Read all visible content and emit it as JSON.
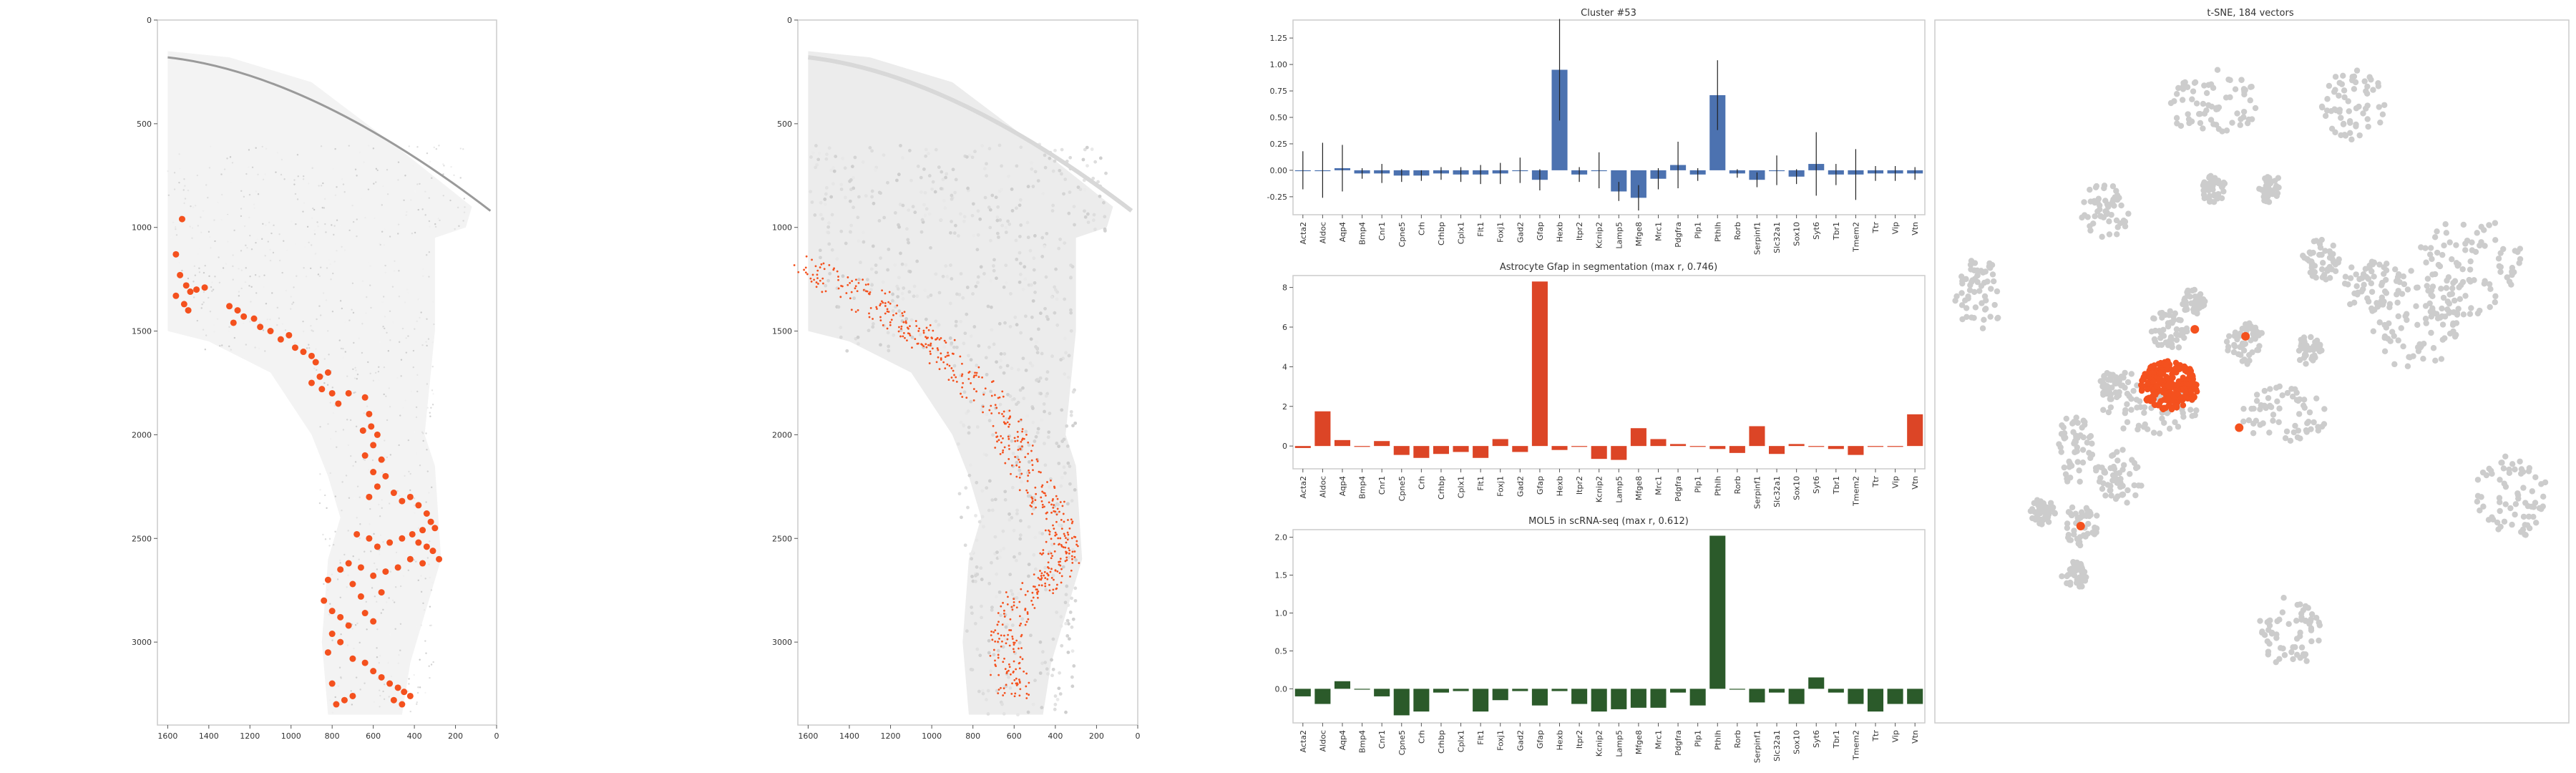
{
  "colors": {
    "highlight": "#f4511e",
    "dark_orange": "#e0401c",
    "light_gray": "#cccccc",
    "bar_blue": "#4c72b0",
    "bar_red": "#dc4526",
    "bar_green": "#2b5a2a",
    "frame": "#cccccc"
  },
  "chart_data": [
    {
      "type": "scatter",
      "panel": "tissue-raw",
      "title": "",
      "xlim": [
        1650,
        0
      ],
      "ylim": [
        3400,
        0
      ],
      "x_ticks": [
        1600,
        1400,
        1200,
        1000,
        800,
        600,
        400,
        200,
        0
      ],
      "y_ticks": [
        0,
        500,
        1000,
        1500,
        2000,
        2500,
        3000
      ],
      "highlight_points": [
        [
          1530,
          960
        ],
        [
          1560,
          1130
        ],
        [
          1540,
          1230
        ],
        [
          1510,
          1280
        ],
        [
          1490,
          1310
        ],
        [
          1460,
          1300
        ],
        [
          1420,
          1290
        ],
        [
          1560,
          1330
        ],
        [
          1520,
          1370
        ],
        [
          1500,
          1400
        ],
        [
          1300,
          1380
        ],
        [
          1260,
          1400
        ],
        [
          1230,
          1430
        ],
        [
          1280,
          1460
        ],
        [
          1180,
          1440
        ],
        [
          1150,
          1480
        ],
        [
          1100,
          1500
        ],
        [
          1050,
          1540
        ],
        [
          1010,
          1520
        ],
        [
          980,
          1580
        ],
        [
          940,
          1600
        ],
        [
          900,
          1620
        ],
        [
          880,
          1650
        ],
        [
          820,
          1700
        ],
        [
          860,
          1720
        ],
        [
          900,
          1750
        ],
        [
          850,
          1780
        ],
        [
          800,
          1800
        ],
        [
          770,
          1850
        ],
        [
          720,
          1800
        ],
        [
          640,
          1820
        ],
        [
          620,
          1900
        ],
        [
          610,
          1960
        ],
        [
          580,
          2000
        ],
        [
          650,
          1980
        ],
        [
          600,
          2050
        ],
        [
          640,
          2100
        ],
        [
          560,
          2120
        ],
        [
          600,
          2180
        ],
        [
          540,
          2200
        ],
        [
          580,
          2250
        ],
        [
          620,
          2300
        ],
        [
          500,
          2280
        ],
        [
          460,
          2320
        ],
        [
          420,
          2300
        ],
        [
          380,
          2340
        ],
        [
          340,
          2380
        ],
        [
          320,
          2420
        ],
        [
          300,
          2450
        ],
        [
          360,
          2460
        ],
        [
          410,
          2480
        ],
        [
          460,
          2500
        ],
        [
          520,
          2520
        ],
        [
          580,
          2540
        ],
        [
          620,
          2500
        ],
        [
          680,
          2480
        ],
        [
          380,
          2520
        ],
        [
          340,
          2540
        ],
        [
          310,
          2560
        ],
        [
          280,
          2600
        ],
        [
          360,
          2620
        ],
        [
          420,
          2600
        ],
        [
          480,
          2640
        ],
        [
          540,
          2660
        ],
        [
          600,
          2680
        ],
        [
          660,
          2640
        ],
        [
          720,
          2620
        ],
        [
          760,
          2650
        ],
        [
          820,
          2700
        ],
        [
          840,
          2800
        ],
        [
          800,
          2850
        ],
        [
          760,
          2880
        ],
        [
          720,
          2920
        ],
        [
          800,
          2960
        ],
        [
          760,
          3000
        ],
        [
          820,
          3050
        ],
        [
          700,
          3080
        ],
        [
          640,
          3100
        ],
        [
          600,
          3140
        ],
        [
          560,
          3170
        ],
        [
          520,
          3200
        ],
        [
          480,
          3220
        ],
        [
          450,
          3240
        ],
        [
          420,
          3260
        ],
        [
          800,
          3200
        ],
        [
          780,
          3300
        ],
        [
          740,
          3280
        ],
        [
          700,
          3260
        ],
        [
          500,
          3280
        ],
        [
          460,
          3300
        ],
        [
          640,
          2860
        ],
        [
          600,
          2900
        ],
        [
          660,
          2780
        ],
        [
          700,
          2720
        ],
        [
          560,
          2760
        ]
      ]
    },
    {
      "type": "scatter",
      "panel": "tissue-segmentation",
      "title": "",
      "xlim": [
        1650,
        0
      ],
      "ylim": [
        3400,
        0
      ],
      "x_ticks": [
        1600,
        1400,
        1200,
        1000,
        800,
        600,
        400,
        200,
        0
      ],
      "y_ticks": [
        0,
        500,
        1000,
        1500,
        2000,
        2500,
        3000
      ]
    },
    {
      "type": "bar",
      "panel": "cluster-bars",
      "title": "Cluster #53",
      "categories": [
        "Acta2",
        "Aldoc",
        "Aqp4",
        "Bmp4",
        "Cnr1",
        "Cpne5",
        "Crh",
        "Crhbp",
        "Cplx1",
        "Flt1",
        "Foxj1",
        "Gad2",
        "Gfap",
        "Hexb",
        "Itpr2",
        "Kcnip2",
        "Lamp5",
        "Mfge8",
        "Mrc1",
        "Pdgfra",
        "Plp1",
        "Pthlh",
        "Rorb",
        "Serpinf1",
        "Slc32a1",
        "Sox10",
        "Syt6",
        "Tbr1",
        "Tmem2",
        "Ttr",
        "Vip",
        "Vtn"
      ],
      "values": [
        0.0,
        0.0,
        0.02,
        -0.03,
        -0.03,
        -0.05,
        -0.05,
        -0.03,
        -0.04,
        -0.04,
        -0.03,
        0.0,
        -0.09,
        0.95,
        -0.04,
        0.0,
        -0.2,
        -0.26,
        -0.08,
        0.05,
        -0.04,
        0.71,
        -0.03,
        -0.09,
        0.0,
        -0.06,
        0.06,
        -0.04,
        -0.04,
        -0.03,
        -0.03,
        -0.03
      ],
      "errors": [
        0.18,
        0.26,
        0.22,
        0.05,
        0.09,
        0.06,
        0.05,
        0.06,
        0.07,
        0.09,
        0.1,
        0.12,
        0.1,
        0.48,
        0.07,
        0.17,
        0.09,
        0.12,
        0.1,
        0.22,
        0.06,
        0.33,
        0.04,
        0.07,
        0.14,
        0.07,
        0.3,
        0.1,
        0.24,
        0.07,
        0.07,
        0.06
      ],
      "ylim": [
        -0.42,
        1.42
      ],
      "y_ticks": [
        -0.25,
        0.0,
        0.25,
        0.5,
        0.75,
        1.0,
        1.25
      ]
    },
    {
      "type": "bar",
      "panel": "astrocyte-bars",
      "title": "Astrocyte Gfap in segmentation (max r, 0.746)",
      "categories": [
        "Acta2",
        "Aldoc",
        "Aqp4",
        "Bmp4",
        "Cnr1",
        "Cpne5",
        "Crh",
        "Crhbp",
        "Cplx1",
        "Flt1",
        "Foxj1",
        "Gad2",
        "Gfap",
        "Hexb",
        "Itpr2",
        "Kcnip2",
        "Lamp5",
        "Mfge8",
        "Mrc1",
        "Pdgfra",
        "Plp1",
        "Pthlh",
        "Rorb",
        "Serpinf1",
        "Slc32a1",
        "Sox10",
        "Syt6",
        "Tbr1",
        "Tmem2",
        "Ttr",
        "Vip",
        "Vtn"
      ],
      "values": [
        -0.1,
        1.75,
        0.3,
        0.0,
        0.25,
        -0.45,
        -0.6,
        -0.4,
        -0.3,
        -0.6,
        0.35,
        -0.3,
        8.3,
        -0.2,
        0.0,
        -0.65,
        -0.7,
        0.9,
        0.35,
        0.1,
        0.0,
        -0.15,
        -0.35,
        1.0,
        -0.4,
        0.1,
        0.0,
        -0.15,
        -0.45,
        0.0,
        0.0,
        1.6
      ],
      "ylim": [
        -1.15,
        8.6
      ],
      "y_ticks": [
        0,
        2,
        4,
        6,
        8
      ]
    },
    {
      "type": "bar",
      "panel": "mol5-bars",
      "title": "MOL5 in scRNA-seq (max r, 0.612)",
      "categories": [
        "Acta2",
        "Aldoc",
        "Aqp4",
        "Bmp4",
        "Cnr1",
        "Cpne5",
        "Crh",
        "Crhbp",
        "Cplx1",
        "Flt1",
        "Foxj1",
        "Gad2",
        "Gfap",
        "Hexb",
        "Itpr2",
        "Kcnip2",
        "Lamp5",
        "Mfge8",
        "Mrc1",
        "Pdgfra",
        "Plp1",
        "Pthlh",
        "Rorb",
        "Serpinf1",
        "Slc32a1",
        "Sox10",
        "Syt6",
        "Tbr1",
        "Tmem2",
        "Ttr",
        "Vip",
        "Vtn"
      ],
      "values": [
        -0.1,
        -0.2,
        0.1,
        0.0,
        -0.1,
        -0.35,
        -0.3,
        -0.05,
        -0.03,
        -0.3,
        -0.15,
        -0.03,
        -0.22,
        -0.03,
        -0.2,
        -0.3,
        -0.27,
        -0.25,
        -0.25,
        -0.05,
        -0.22,
        2.02,
        0.0,
        -0.18,
        -0.05,
        -0.2,
        0.15,
        -0.05,
        -0.2,
        -0.3,
        -0.2,
        -0.2
      ],
      "ylim": [
        -0.45,
        2.1
      ],
      "y_ticks": [
        0.0,
        0.5,
        1.0,
        1.5,
        2.0
      ]
    },
    {
      "type": "scatter",
      "panel": "tsne",
      "title": "t-SNE, 184 vectors",
      "highlight_points": [
        [
          0.37,
          0.52
        ],
        [
          0.41,
          0.44
        ],
        [
          0.49,
          0.45
        ],
        [
          0.48,
          0.58
        ],
        [
          0.23,
          0.72
        ]
      ]
    }
  ]
}
